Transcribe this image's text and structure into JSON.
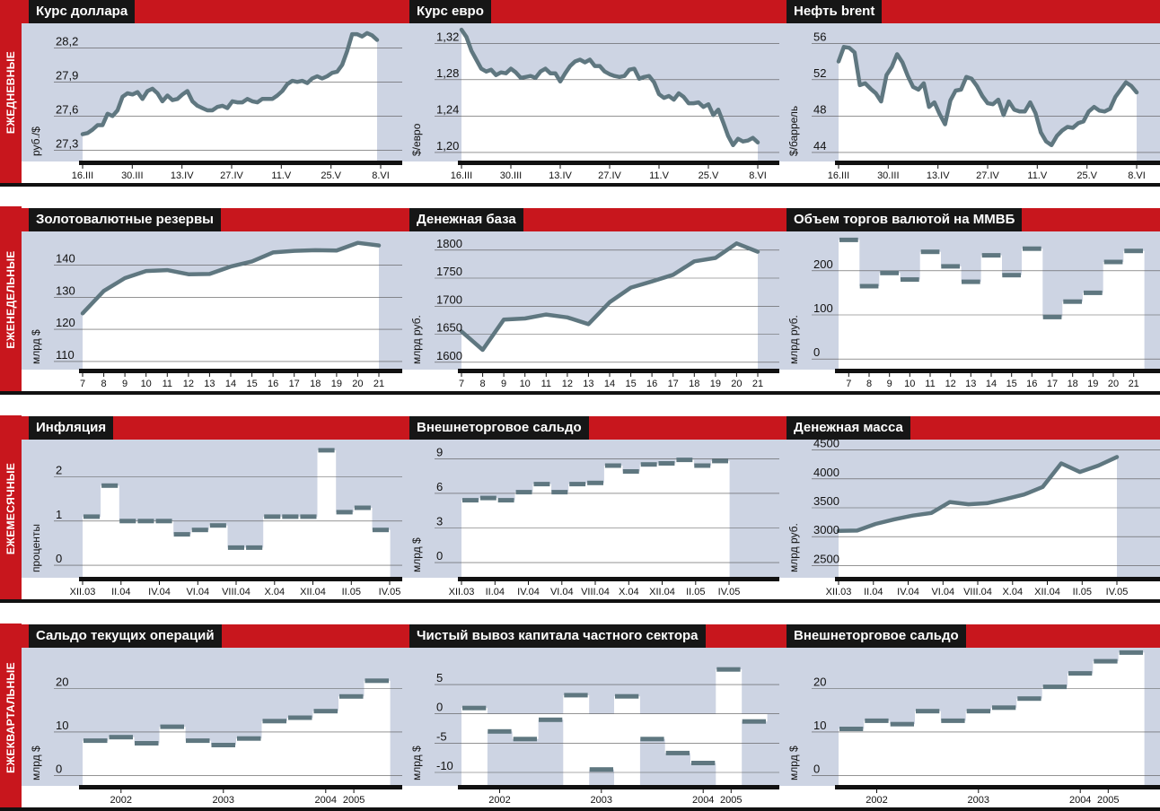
{
  "rows": [
    {
      "label": "ЕЖЕДНЕВНЫЕ"
    },
    {
      "label": "ЕЖЕНЕДЕЛЬНЫЕ"
    },
    {
      "label": "ЕЖЕМЕСЯЧНЫЕ"
    },
    {
      "label": "ЕЖЕКВАРТАЛЬНЫЕ"
    }
  ],
  "colors": {
    "red": "#c8161d",
    "bg": "#cdd4e3",
    "line": "#5f7780",
    "title_bg": "#161616"
  },
  "chart_data": [
    {
      "type": "line",
      "title": "Курс доллара",
      "ylabel": "руб./$",
      "ylim": [
        27.2,
        28.4
      ],
      "yticks": [
        "27,3",
        "27,6",
        "27,9",
        "28,2"
      ],
      "ytick_values": [
        27.3,
        27.6,
        27.9,
        28.2
      ],
      "xlabels": [
        "16.III",
        "30.III",
        "13.IV",
        "27.IV",
        "11.V",
        "25.V",
        "8.VI"
      ],
      "values": [
        27.44,
        27.45,
        27.48,
        27.52,
        27.52,
        27.62,
        27.6,
        27.65,
        27.77,
        27.8,
        27.79,
        27.81,
        27.75,
        27.82,
        27.84,
        27.8,
        27.73,
        27.78,
        27.74,
        27.75,
        27.79,
        27.82,
        27.73,
        27.69,
        27.67,
        27.65,
        27.65,
        27.68,
        27.69,
        27.67,
        27.73,
        27.72,
        27.72,
        27.75,
        27.73,
        27.72,
        27.75,
        27.75,
        27.75,
        27.78,
        27.82,
        27.88,
        27.91,
        27.9,
        27.91,
        27.89,
        27.93,
        27.95,
        27.93,
        27.95,
        27.98,
        27.99,
        28.05,
        28.17,
        28.32,
        28.32,
        28.3,
        28.33,
        28.31,
        28.27
      ]
    },
    {
      "type": "line",
      "title": "Курс евро",
      "ylabel": "$/евро",
      "ylim": [
        1.19,
        1.34
      ],
      "yticks": [
        "1,20",
        "1,24",
        "1,28",
        "1,32"
      ],
      "ytick_values": [
        1.2,
        1.24,
        1.28,
        1.32
      ],
      "xlabels": [
        "16.III",
        "30.III",
        "13.IV",
        "27.IV",
        "11.V",
        "25.V",
        "8.VI"
      ],
      "values": [
        1.335,
        1.327,
        1.312,
        1.302,
        1.292,
        1.289,
        1.291,
        1.285,
        1.288,
        1.287,
        1.292,
        1.288,
        1.282,
        1.283,
        1.284,
        1.282,
        1.289,
        1.292,
        1.287,
        1.287,
        1.278,
        1.287,
        1.295,
        1.3,
        1.302,
        1.299,
        1.302,
        1.295,
        1.295,
        1.289,
        1.286,
        1.284,
        1.283,
        1.284,
        1.291,
        1.292,
        1.281,
        1.283,
        1.284,
        1.277,
        1.264,
        1.26,
        1.262,
        1.258,
        1.265,
        1.261,
        1.254,
        1.254,
        1.255,
        1.25,
        1.253,
        1.241,
        1.247,
        1.233,
        1.218,
        1.208,
        1.215,
        1.212,
        1.213,
        1.216,
        1.211
      ]
    },
    {
      "type": "line",
      "title": "Нефть brent",
      "ylabel": "$/баррель",
      "ylim": [
        43,
        58
      ],
      "yticks": [
        "44",
        "48",
        "52",
        "56"
      ],
      "ytick_values": [
        44,
        48,
        52,
        56
      ],
      "xlabels": [
        "16.III",
        "30.III",
        "13.IV",
        "27.IV",
        "11.V",
        "25.V",
        "8.VI"
      ],
      "values": [
        54,
        55.6,
        55.5,
        55,
        51.4,
        51.6,
        51,
        50.5,
        49.6,
        52.5,
        53.4,
        54.8,
        53.9,
        52.4,
        51.2,
        50.9,
        51.6,
        49,
        49.5,
        48.2,
        47.1,
        49.7,
        50.8,
        50.9,
        52.3,
        52.1,
        51.3,
        50.2,
        49.4,
        49.3,
        49.8,
        48.1,
        49.6,
        48.7,
        48.5,
        48.5,
        49.5,
        48.3,
        46.2,
        45.2,
        44.8,
        45.8,
        46.4,
        46.8,
        46.7,
        47.2,
        47.4,
        48.5,
        49,
        48.6,
        48.5,
        48.8,
        50.1,
        50.9,
        51.7,
        51.3,
        50.6
      ]
    },
    {
      "type": "line",
      "title": "Золотовалютные резервы",
      "ylabel": "млрд $",
      "ylim": [
        108,
        150
      ],
      "yticks": [
        "110",
        "120",
        "130",
        "140"
      ],
      "ytick_values": [
        110,
        120,
        130,
        140
      ],
      "x": [
        "7",
        "8",
        "9",
        "10",
        "11",
        "12",
        "13",
        "14",
        "15",
        "16",
        "17",
        "18",
        "19",
        "20",
        "21"
      ],
      "values": [
        125,
        132,
        136,
        138.2,
        138.5,
        137.2,
        137.3,
        139.6,
        141.2,
        144,
        144.5,
        144.7,
        144.6,
        147,
        146.2
      ]
    },
    {
      "type": "line",
      "title": "Денежная база",
      "ylabel": "млрд руб.",
      "ylim": [
        1590,
        1830
      ],
      "yticks": [
        "1600",
        "1650",
        "1700",
        "1750",
        "1800"
      ],
      "ytick_values": [
        1600,
        1650,
        1700,
        1750,
        1800
      ],
      "x": [
        "7",
        "8",
        "9",
        "10",
        "11",
        "12",
        "13",
        "14",
        "15",
        "16",
        "17",
        "18",
        "19",
        "20",
        "21"
      ],
      "values": [
        1655,
        1622,
        1676,
        1678,
        1685,
        1680,
        1668,
        1707,
        1733,
        1744,
        1756,
        1780,
        1786,
        1812,
        1797
      ]
    },
    {
      "type": "bar",
      "title": "Объем торгов валютой на ММВБ",
      "ylabel": "млрд руб.",
      "ylim": [
        -20,
        285
      ],
      "yticks": [
        "0",
        "100",
        "200"
      ],
      "ytick_values": [
        0,
        100,
        200
      ],
      "x": [
        "7",
        "8",
        "9",
        "10",
        "11",
        "12",
        "13",
        "14",
        "15",
        "16",
        "17",
        "18",
        "19",
        "20",
        "21"
      ],
      "values": [
        270,
        165,
        195,
        180,
        243,
        210,
        175,
        235,
        190,
        250,
        95,
        130,
        150,
        220,
        245
      ]
    },
    {
      "type": "bar",
      "title": "Инфляция",
      "ylabel": "проценты",
      "ylim": [
        -0.2,
        2.8
      ],
      "yticks": [
        "0",
        "1",
        "2"
      ],
      "ytick_values": [
        0,
        1,
        2
      ],
      "xlabels": [
        "XII.03",
        "II.04",
        "IV.04",
        "VI.04",
        "VIII.04",
        "X.04",
        "XII.04",
        "II.05",
        "IV.05"
      ],
      "values": [
        1.1,
        1.8,
        1.0,
        1.0,
        1.0,
        0.7,
        0.8,
        0.9,
        0.4,
        0.4,
        1.1,
        1.1,
        1.1,
        2.6,
        1.2,
        1.3,
        0.8
      ]
    },
    {
      "type": "bar",
      "title": "Внешнеторговое сальдо",
      "ylabel": "млрд $",
      "ylim": [
        -1,
        10.5
      ],
      "yticks": [
        "0",
        "3",
        "6",
        "9"
      ],
      "ytick_values": [
        0,
        3,
        6,
        9
      ],
      "xlabels": [
        "XII.03",
        "II.04",
        "IV.04",
        "VI.04",
        "VIII.04",
        "X.04",
        "XII.04",
        "II.05",
        "IV.05"
      ],
      "values": [
        5.4,
        5.6,
        5.4,
        6.1,
        6.8,
        6.1,
        6.8,
        6.9,
        8.4,
        7.9,
        8.5,
        8.6,
        8.9,
        8.4,
        8.8
      ]
    },
    {
      "type": "line",
      "title": "Денежная масса",
      "ylabel": "млрд руб.",
      "ylim": [
        2350,
        4650
      ],
      "yticks": [
        "2500",
        "3000",
        "3500",
        "4000",
        "4500"
      ],
      "ytick_values": [
        2500,
        3000,
        3500,
        4000,
        4500
      ],
      "xlabels": [
        "XII.03",
        "II.04",
        "IV.04",
        "VI.04",
        "VIII.04",
        "X.04",
        "XII.04",
        "II.05",
        "IV.05"
      ],
      "values": [
        3100,
        3105,
        3220,
        3300,
        3365,
        3410,
        3600,
        3560,
        3580,
        3650,
        3730,
        3860,
        4270,
        4120,
        4230,
        4380
      ]
    },
    {
      "type": "bar",
      "title": "Сальдо текущих операций",
      "ylabel": "млрд $",
      "ylim": [
        -2,
        29
      ],
      "yticks": [
        "0",
        "10",
        "20"
      ],
      "ytick_values": [
        0,
        10,
        20
      ],
      "xlabels": [
        "2002",
        "2003",
        "2004",
        "2005"
      ],
      "values": [
        8,
        8.8,
        7.4,
        11.2,
        8,
        7,
        8.5,
        12.5,
        13.3,
        14.8,
        18.2,
        21.8
      ]
    },
    {
      "type": "bar",
      "title": "Чистый вывоз капитала частного сектора",
      "ylabel": "млрд $",
      "ylim": [
        -12,
        11
      ],
      "yticks": [
        "-10",
        "-5",
        "0",
        "5"
      ],
      "ytick_values": [
        -10,
        -5,
        0,
        5
      ],
      "xlabels": [
        "2002",
        "2003",
        "2004",
        "2005"
      ],
      "values": [
        1,
        -3,
        -4.3,
        -1,
        3.2,
        -9.5,
        3,
        -4.3,
        -6.7,
        -8.4,
        7.6,
        -1.3
      ]
    },
    {
      "type": "bar",
      "title": "Внешнеторговое сальдо",
      "ylabel": "млрд $",
      "ylim": [
        -2,
        29
      ],
      "yticks": [
        "0",
        "10",
        "20"
      ],
      "ytick_values": [
        0,
        10,
        20
      ],
      "xlabels": [
        "2002",
        "2003",
        "2004",
        "2005"
      ],
      "values": [
        10.7,
        12.6,
        11.8,
        14.8,
        12.6,
        14.8,
        15.6,
        17.7,
        20.4,
        23.5,
        26.3,
        28.3
      ]
    }
  ]
}
